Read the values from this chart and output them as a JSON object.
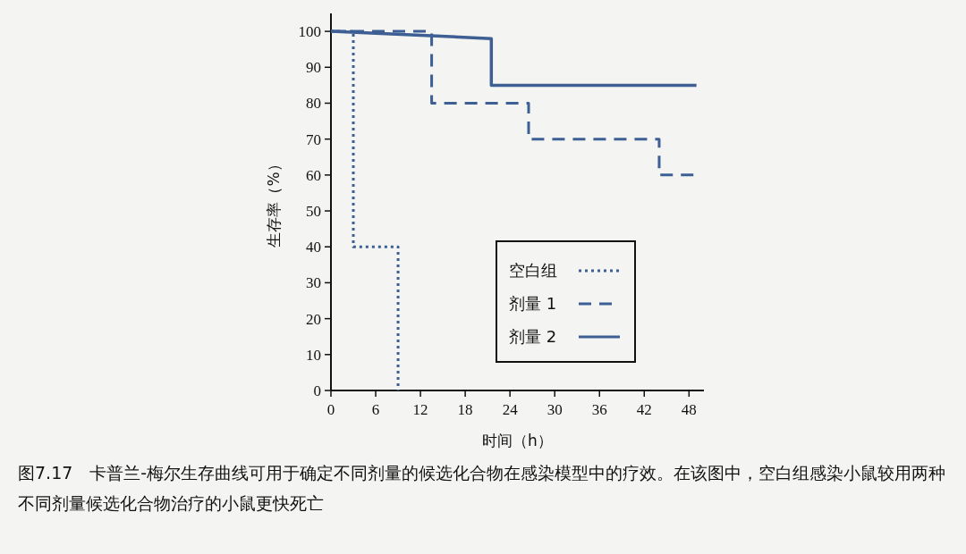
{
  "chart_data": {
    "type": "line",
    "xlabel": "时间（h）",
    "ylabel": "生存率（%）",
    "xlim": [
      0,
      50
    ],
    "ylim": [
      0,
      105
    ],
    "xticks": [
      0,
      6,
      12,
      18,
      24,
      30,
      36,
      42,
      48
    ],
    "yticks": [
      0,
      10,
      20,
      30,
      40,
      50,
      60,
      70,
      80,
      90,
      100
    ],
    "grid": false,
    "legend": "bottom right",
    "marker": "none",
    "series": [
      {
        "name": "空白组",
        "color": "#3d5f94",
        "line_style": "dotted",
        "x": [
          0,
          3,
          3,
          9,
          9
        ],
        "values": [
          100,
          100,
          40,
          40,
          0
        ]
      },
      {
        "name": "剂量 1",
        "color": "#3d5f94",
        "line_style": "dashed",
        "x": [
          0,
          13.5,
          13.5,
          26.5,
          26.5,
          44,
          44,
          49
        ],
        "values": [
          100,
          100,
          80,
          80,
          70,
          70,
          60,
          60
        ]
      },
      {
        "name": "剂量 2",
        "color": "#3d5f94",
        "line_style": "solid",
        "x": [
          0,
          21.5,
          21.5,
          49
        ],
        "values": [
          100,
          98,
          85,
          85
        ]
      }
    ],
    "annotations": [
      "图7.17　卡普兰-梅尔生存曲线可用于确定不同剂量的候选化合物在感染模型中的疗效。在该图中，空白组感染小鼠较用两种不同剂量候选化合物治疗的小鼠更快死亡"
    ]
  }
}
